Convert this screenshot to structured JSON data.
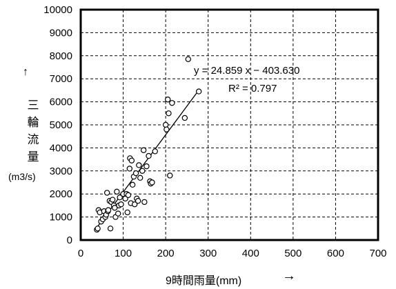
{
  "chart_data": {
    "type": "scatter",
    "title": "",
    "xlabel": "9時間雨量(mm)",
    "xlabel_arrow": "→",
    "ylabel_chars": [
      "三",
      "輪",
      "流",
      "量"
    ],
    "ylabel_arrow": "↑",
    "ylabel_unit": "(m3/s)",
    "xlim": [
      0,
      700
    ],
    "ylim": [
      0,
      10000
    ],
    "xticks": [
      "0",
      "100",
      "200",
      "300",
      "400",
      "500",
      "600",
      "700"
    ],
    "yticks": [
      "0",
      "1000",
      "2000",
      "3000",
      "4000",
      "5000",
      "6000",
      "7000",
      "8000",
      "9000",
      "10000"
    ],
    "grid": true,
    "marker": "open-circle",
    "trendline": {
      "slope": 24.859,
      "intercept": -403.63,
      "x_range": [
        38,
        280
      ],
      "equation_text": "y = 24.859 x − 403.630",
      "r2_text": "R² = 0.797"
    },
    "points": [
      [
        38,
        450
      ],
      [
        40,
        500
      ],
      [
        42,
        1300
      ],
      [
        45,
        1200
      ],
      [
        48,
        800
      ],
      [
        52,
        900
      ],
      [
        55,
        1250
      ],
      [
        58,
        1000
      ],
      [
        60,
        1100
      ],
      [
        62,
        2050
      ],
      [
        64,
        1250
      ],
      [
        65,
        1300
      ],
      [
        68,
        1700
      ],
      [
        70,
        500
      ],
      [
        72,
        1650
      ],
      [
        75,
        1750
      ],
      [
        78,
        1500
      ],
      [
        80,
        1400
      ],
      [
        82,
        1000
      ],
      [
        85,
        2100
      ],
      [
        88,
        1150
      ],
      [
        90,
        1500
      ],
      [
        92,
        1850
      ],
      [
        95,
        1550
      ],
      [
        100,
        2000
      ],
      [
        105,
        1800
      ],
      [
        108,
        2000
      ],
      [
        110,
        1200
      ],
      [
        112,
        1950
      ],
      [
        115,
        3100
      ],
      [
        116,
        3550
      ],
      [
        118,
        1600
      ],
      [
        120,
        3450
      ],
      [
        122,
        2400
      ],
      [
        125,
        2750
      ],
      [
        127,
        1550
      ],
      [
        130,
        2900
      ],
      [
        132,
        1800
      ],
      [
        135,
        1700
      ],
      [
        137,
        3250
      ],
      [
        140,
        2700
      ],
      [
        145,
        3000
      ],
      [
        148,
        3900
      ],
      [
        150,
        1650
      ],
      [
        155,
        3200
      ],
      [
        160,
        3650
      ],
      [
        163,
        2550
      ],
      [
        165,
        2450
      ],
      [
        168,
        2500
      ],
      [
        175,
        3850
      ],
      [
        200,
        5000
      ],
      [
        202,
        4800
      ],
      [
        205,
        6100
      ],
      [
        207,
        5500
      ],
      [
        210,
        2800
      ],
      [
        215,
        5950
      ],
      [
        245,
        5300
      ],
      [
        253,
        7850
      ],
      [
        278,
        6450
      ]
    ]
  }
}
